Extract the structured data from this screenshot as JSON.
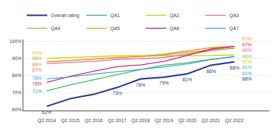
{
  "chart_data": {
    "type": "line",
    "categories": [
      "Q2 2014",
      "Q2 2015",
      "Q2 2016",
      "Q2 2017",
      "Q2 2018",
      "Q2 2019",
      "Q2 2020",
      "Q2 2021",
      "Q2 2022"
    ],
    "series": [
      {
        "name": "Overall rating",
        "color": "#2b3990",
        "values": [
          0.62,
          0.665,
          0.69,
          0.73,
          0.78,
          0.79,
          0.81,
          0.86,
          0.88
        ],
        "value_labels": [
          "62%",
          null,
          null,
          "73%",
          "78%",
          "79%",
          "81%",
          "86%",
          "88%"
        ],
        "end_label": "88%"
      },
      {
        "name": "QA1",
        "color": "#39b54a",
        "values": [
          0.71,
          0.745,
          0.775,
          0.805,
          0.835,
          0.86,
          0.875,
          0.895,
          0.91
        ],
        "start_label": "71%",
        "end_label": "91%"
      },
      {
        "name": "QA2",
        "color": "#d4cf00",
        "values": [
          0.9,
          0.905,
          0.91,
          0.915,
          0.915,
          0.915,
          0.916,
          0.916,
          0.92
        ],
        "start_label": "90%",
        "end_label": "92%"
      },
      {
        "name": "QA3",
        "color": "#e8699a",
        "values": [
          0.87,
          0.875,
          0.883,
          0.895,
          0.898,
          0.905,
          0.925,
          0.945,
          0.96
        ],
        "start_label": "87%",
        "end_label": "96%"
      },
      {
        "name": "QA4",
        "color": "#8dc63f",
        "values": [
          0.88,
          0.888,
          0.895,
          0.905,
          0.91,
          0.92,
          0.935,
          0.95,
          0.96
        ],
        "start_label": "88%",
        "end_label": "96%"
      },
      {
        "name": "QA5",
        "color": "#f7941d",
        "values": [
          0.88,
          0.888,
          0.895,
          0.905,
          0.912,
          0.925,
          0.945,
          0.963,
          0.97
        ],
        "start_label": "88%",
        "end_label": "97%"
      },
      {
        "name": "QA6",
        "color": "#d7185c",
        "values": [
          0.76,
          0.795,
          0.825,
          0.852,
          0.862,
          0.883,
          0.918,
          0.955,
          0.97
        ],
        "start_label": "76%",
        "end_label": "97%"
      },
      {
        "name": "QA7",
        "color": "#29aae1",
        "values": [
          0.78,
          0.792,
          0.808,
          0.822,
          0.835,
          0.85,
          0.868,
          0.893,
          0.91
        ],
        "start_label": "78%",
        "end_label": "91%"
      }
    ],
    "ylim": [
      0.595,
      1.01
    ],
    "yticks": [
      {
        "value": 0.6,
        "label": "60%"
      },
      {
        "value": 0.7,
        "label": "70%"
      },
      {
        "value": 0.8,
        "label": "80%"
      },
      {
        "value": 0.9,
        "label": "90%"
      },
      {
        "value": 1.0,
        "label": "100%"
      }
    ],
    "grid": true,
    "legend": "top"
  }
}
